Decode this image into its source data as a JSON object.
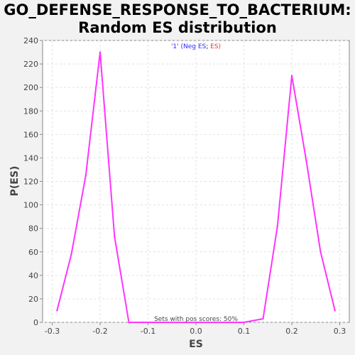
{
  "chart_data": {
    "type": "line",
    "title_line1": "GO_DEFENSE_RESPONSE_TO_BACTERIUM:",
    "title_line2": "Random ES distribution",
    "xlabel": "ES",
    "ylabel": "P(ES)",
    "xlim": [
      -0.32,
      0.32
    ],
    "ylim": [
      0,
      240
    ],
    "xticks": [
      -0.3,
      -0.2,
      -0.1,
      0.0,
      0.1,
      0.2,
      0.3
    ],
    "xtick_labels": [
      "-0.3",
      "-0.2",
      "-0.1",
      "0.0",
      "0.1",
      "0.2",
      "0.3"
    ],
    "yticks": [
      0,
      20,
      40,
      60,
      80,
      100,
      120,
      140,
      160,
      180,
      200,
      220,
      240
    ],
    "grid": true,
    "legend": {
      "neg_text": "'1' (Neg ES",
      "sep": "; ",
      "pos_text": "ES)",
      "neg_color": "#2b2bff",
      "pos_color": "#ff2b2b",
      "placement": "top-center"
    },
    "annotation": "Sets with pos scores: 50%",
    "series": [
      {
        "name": "P(ES)",
        "color": "#ff33ff",
        "x": [
          -0.29,
          -0.26,
          -0.23,
          -0.2,
          -0.17,
          -0.14,
          -0.11,
          -0.08,
          -0.05,
          -0.02,
          0.01,
          0.04,
          0.07,
          0.1,
          0.14,
          0.17,
          0.2,
          0.23,
          0.26,
          0.29
        ],
        "y": [
          10,
          58,
          125,
          230,
          73,
          0,
          0,
          0,
          0,
          0,
          0,
          0,
          0,
          0,
          3,
          82,
          210,
          138,
          60,
          10
        ]
      }
    ]
  }
}
